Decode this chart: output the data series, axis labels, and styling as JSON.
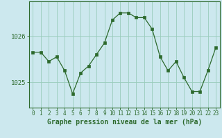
{
  "x": [
    0,
    1,
    2,
    3,
    4,
    5,
    6,
    7,
    8,
    9,
    10,
    11,
    12,
    13,
    14,
    15,
    16,
    17,
    18,
    19,
    20,
    21,
    22,
    23
  ],
  "y": [
    1025.65,
    1025.65,
    1025.45,
    1025.55,
    1025.25,
    1024.75,
    1025.2,
    1025.35,
    1025.6,
    1025.85,
    1026.35,
    1026.5,
    1026.5,
    1026.4,
    1026.4,
    1026.15,
    1025.55,
    1025.25,
    1025.45,
    1025.1,
    1024.8,
    1024.8,
    1025.25,
    1025.75
  ],
  "line_color": "#2d6a2d",
  "marker_color": "#2d6a2d",
  "bg_color": "#cce8ee",
  "grid_color": "#99ccbb",
  "xlabel": "Graphe pression niveau de la mer (hPa)",
  "xlabel_color": "#2d6a2d",
  "tick_color": "#2d6a2d",
  "axis_color": "#2d6a2d",
  "ytick_labels": [
    "1025",
    "1026"
  ],
  "ytick_values": [
    1025.0,
    1026.0
  ],
  "ylim": [
    1024.45,
    1026.75
  ],
  "xlim": [
    -0.5,
    23.5
  ],
  "xtick_labels": [
    "0",
    "1",
    "2",
    "3",
    "4",
    "5",
    "6",
    "7",
    "8",
    "9",
    "10",
    "11",
    "12",
    "13",
    "14",
    "15",
    "16",
    "17",
    "18",
    "19",
    "20",
    "21",
    "22",
    "23"
  ],
  "xlabel_fontsize": 7,
  "ytick_fontsize": 6.5,
  "xtick_fontsize": 5.5
}
